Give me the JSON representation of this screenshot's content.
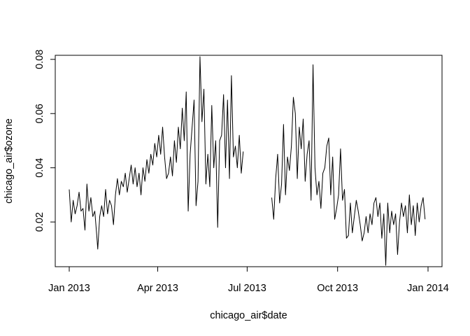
{
  "chart_data": {
    "type": "line",
    "title": "",
    "xlabel": "chicago_air$date",
    "ylabel": "chicago_air$ozone",
    "x_start": "2013-01-01",
    "x_end": "2014-01-01",
    "x_ticks": [
      {
        "label": "Jan 2013",
        "date": "2013-01-01"
      },
      {
        "label": "Apr 2013",
        "date": "2013-04-01"
      },
      {
        "label": "Jul 2013",
        "date": "2013-07-01"
      },
      {
        "label": "Oct 2013",
        "date": "2013-10-01"
      },
      {
        "label": "Jan 2014",
        "date": "2014-01-01"
      }
    ],
    "y_ticks": [
      {
        "label": "0.02",
        "value": 0.02
      },
      {
        "label": "0.04",
        "value": 0.04
      },
      {
        "label": "0.06",
        "value": 0.06
      },
      {
        "label": "0.08",
        "value": 0.08
      }
    ],
    "ylim": [
      0.0035,
      0.0815
    ],
    "grid": false,
    "line_color": "#000000",
    "series": [
      {
        "segments": [
          [
            [
              "2013-01-01",
              0.032
            ],
            [
              "2013-01-03",
              0.02
            ],
            [
              "2013-01-05",
              0.028
            ],
            [
              "2013-01-07",
              0.023
            ],
            [
              "2013-01-09",
              0.026
            ],
            [
              "2013-01-11",
              0.031
            ],
            [
              "2013-01-13",
              0.024
            ],
            [
              "2013-01-15",
              0.025
            ],
            [
              "2013-01-17",
              0.017
            ],
            [
              "2013-01-19",
              0.034
            ],
            [
              "2013-01-21",
              0.024
            ],
            [
              "2013-01-23",
              0.029
            ],
            [
              "2013-01-25",
              0.022
            ],
            [
              "2013-01-27",
              0.024
            ],
            [
              "2013-01-29",
              0.015
            ],
            [
              "2013-01-30",
              0.01
            ],
            [
              "2013-02-01",
              0.022
            ],
            [
              "2013-02-03",
              0.026
            ],
            [
              "2013-02-05",
              0.022
            ],
            [
              "2013-02-07",
              0.032
            ],
            [
              "2013-02-09",
              0.023
            ],
            [
              "2013-02-11",
              0.028
            ],
            [
              "2013-02-13",
              0.026
            ],
            [
              "2013-02-15",
              0.019
            ],
            [
              "2013-02-17",
              0.03
            ],
            [
              "2013-02-19",
              0.036
            ],
            [
              "2013-02-21",
              0.03
            ],
            [
              "2013-02-23",
              0.035
            ],
            [
              "2013-02-25",
              0.033
            ],
            [
              "2013-02-27",
              0.038
            ],
            [
              "2013-03-01",
              0.031
            ],
            [
              "2013-03-03",
              0.036
            ],
            [
              "2013-03-05",
              0.041
            ],
            [
              "2013-03-07",
              0.034
            ],
            [
              "2013-03-09",
              0.04
            ],
            [
              "2013-03-11",
              0.033
            ],
            [
              "2013-03-13",
              0.038
            ],
            [
              "2013-03-15",
              0.03
            ],
            [
              "2013-03-17",
              0.04
            ],
            [
              "2013-03-19",
              0.035
            ],
            [
              "2013-03-21",
              0.043
            ],
            [
              "2013-03-23",
              0.038
            ],
            [
              "2013-03-25",
              0.045
            ],
            [
              "2013-03-27",
              0.041
            ],
            [
              "2013-03-29",
              0.049
            ],
            [
              "2013-03-31",
              0.044
            ],
            [
              "2013-04-02",
              0.052
            ],
            [
              "2013-04-04",
              0.045
            ],
            [
              "2013-04-06",
              0.055
            ],
            [
              "2013-04-08",
              0.044
            ],
            [
              "2013-04-10",
              0.036
            ],
            [
              "2013-04-12",
              0.038
            ],
            [
              "2013-04-14",
              0.044
            ],
            [
              "2013-04-16",
              0.037
            ],
            [
              "2013-04-18",
              0.05
            ],
            [
              "2013-04-20",
              0.042
            ],
            [
              "2013-04-22",
              0.055
            ],
            [
              "2013-04-24",
              0.047
            ],
            [
              "2013-04-26",
              0.062
            ],
            [
              "2013-04-28",
              0.05
            ],
            [
              "2013-04-30",
              0.068
            ],
            [
              "2013-05-02",
              0.024
            ],
            [
              "2013-05-04",
              0.045
            ],
            [
              "2013-05-06",
              0.055
            ],
            [
              "2013-05-08",
              0.065
            ],
            [
              "2013-05-10",
              0.026
            ],
            [
              "2013-05-12",
              0.035
            ],
            [
              "2013-05-14",
              0.081
            ],
            [
              "2013-05-16",
              0.057
            ],
            [
              "2013-05-18",
              0.069
            ],
            [
              "2013-05-20",
              0.034
            ],
            [
              "2013-05-22",
              0.045
            ],
            [
              "2013-05-24",
              0.033
            ],
            [
              "2013-05-26",
              0.063
            ],
            [
              "2013-05-28",
              0.04
            ],
            [
              "2013-05-30",
              0.05
            ],
            [
              "2013-06-01",
              0.018
            ],
            [
              "2013-06-03",
              0.05
            ],
            [
              "2013-06-05",
              0.052
            ],
            [
              "2013-06-07",
              0.067
            ],
            [
              "2013-06-09",
              0.04
            ],
            [
              "2013-06-11",
              0.065
            ],
            [
              "2013-06-13",
              0.036
            ],
            [
              "2013-06-15",
              0.074
            ],
            [
              "2013-06-17",
              0.044
            ],
            [
              "2013-06-19",
              0.048
            ],
            [
              "2013-06-21",
              0.04
            ],
            [
              "2013-06-23",
              0.052
            ],
            [
              "2013-06-25",
              0.038
            ],
            [
              "2013-06-27",
              0.046
            ]
          ],
          [
            [
              "2013-07-26",
              0.029
            ],
            [
              "2013-07-28",
              0.021
            ],
            [
              "2013-07-30",
              0.036
            ],
            [
              "2013-08-01",
              0.045
            ],
            [
              "2013-08-03",
              0.027
            ],
            [
              "2013-08-05",
              0.034
            ],
            [
              "2013-08-07",
              0.056
            ],
            [
              "2013-08-09",
              0.03
            ],
            [
              "2013-08-11",
              0.044
            ],
            [
              "2013-08-13",
              0.039
            ],
            [
              "2013-08-15",
              0.048
            ],
            [
              "2013-08-17",
              0.066
            ],
            [
              "2013-08-19",
              0.06
            ],
            [
              "2013-08-21",
              0.036
            ],
            [
              "2013-08-23",
              0.055
            ],
            [
              "2013-08-25",
              0.047
            ],
            [
              "2013-08-27",
              0.058
            ],
            [
              "2013-08-29",
              0.035
            ],
            [
              "2013-08-31",
              0.045
            ],
            [
              "2013-09-02",
              0.05
            ],
            [
              "2013-09-04",
              0.028
            ],
            [
              "2013-09-06",
              0.078
            ],
            [
              "2013-09-08",
              0.04
            ],
            [
              "2013-09-10",
              0.03
            ],
            [
              "2013-09-12",
              0.035
            ],
            [
              "2013-09-14",
              0.025
            ],
            [
              "2013-09-16",
              0.038
            ],
            [
              "2013-09-18",
              0.04
            ],
            [
              "2013-09-20",
              0.048
            ],
            [
              "2013-09-22",
              0.051
            ],
            [
              "2013-09-24",
              0.03
            ],
            [
              "2013-09-26",
              0.044
            ],
            [
              "2013-09-28",
              0.021
            ],
            [
              "2013-09-30",
              0.025
            ],
            [
              "2013-10-02",
              0.03
            ],
            [
              "2013-10-04",
              0.047
            ],
            [
              "2013-10-06",
              0.028
            ],
            [
              "2013-10-08",
              0.032
            ],
            [
              "2013-10-10",
              0.014
            ],
            [
              "2013-10-12",
              0.015
            ],
            [
              "2013-10-14",
              0.027
            ],
            [
              "2013-10-16",
              0.016
            ],
            [
              "2013-10-18",
              0.022
            ],
            [
              "2013-10-20",
              0.028
            ],
            [
              "2013-10-22",
              0.024
            ],
            [
              "2013-10-24",
              0.019
            ],
            [
              "2013-10-26",
              0.013
            ],
            [
              "2013-10-28",
              0.016
            ],
            [
              "2013-10-30",
              0.022
            ],
            [
              "2013-11-01",
              0.016
            ],
            [
              "2013-11-03",
              0.023
            ],
            [
              "2013-11-05",
              0.019
            ],
            [
              "2013-11-07",
              0.027
            ],
            [
              "2013-11-09",
              0.029
            ],
            [
              "2013-11-11",
              0.022
            ],
            [
              "2013-11-13",
              0.027
            ],
            [
              "2013-11-15",
              0.014
            ],
            [
              "2013-11-17",
              0.023
            ],
            [
              "2013-11-19",
              0.004
            ],
            [
              "2013-11-21",
              0.027
            ],
            [
              "2013-11-23",
              0.016
            ],
            [
              "2013-11-25",
              0.024
            ],
            [
              "2013-11-27",
              0.019
            ],
            [
              "2013-11-29",
              0.023
            ],
            [
              "2013-12-01",
              0.008
            ],
            [
              "2013-12-03",
              0.02
            ],
            [
              "2013-12-05",
              0.027
            ],
            [
              "2013-12-07",
              0.022
            ],
            [
              "2013-12-09",
              0.026
            ],
            [
              "2013-12-11",
              0.016
            ],
            [
              "2013-12-13",
              0.03
            ],
            [
              "2013-12-15",
              0.019
            ],
            [
              "2013-12-17",
              0.026
            ],
            [
              "2013-12-19",
              0.015
            ],
            [
              "2013-12-21",
              0.027
            ],
            [
              "2013-12-23",
              0.02
            ],
            [
              "2013-12-25",
              0.026
            ],
            [
              "2013-12-27",
              0.029
            ],
            [
              "2013-12-29",
              0.021
            ]
          ]
        ]
      }
    ]
  }
}
